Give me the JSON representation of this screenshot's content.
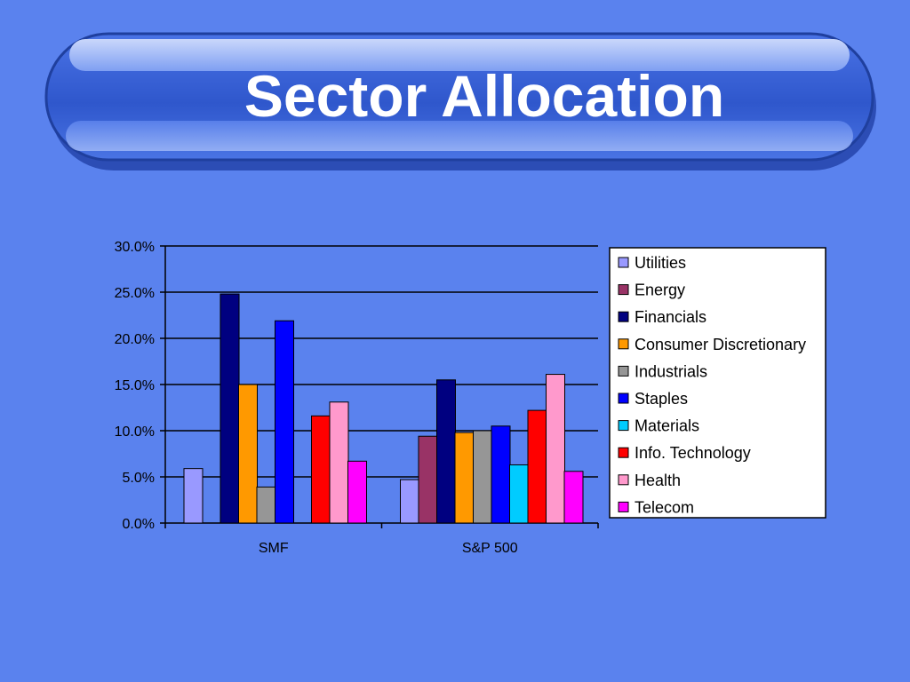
{
  "slide": {
    "title": "Sector Allocation",
    "background_color": "#5a82ee",
    "banner_color": "#3f66d8"
  },
  "chart_data": {
    "type": "bar",
    "title": "",
    "xlabel": "",
    "ylabel": "",
    "categories": [
      "SMF",
      "S&P 500"
    ],
    "ylim": [
      0,
      0.3
    ],
    "yticks": [
      "0.0%",
      "5.0%",
      "10.0%",
      "15.0%",
      "20.0%",
      "25.0%",
      "30.0%"
    ],
    "y_tick_values": [
      0,
      0.05,
      0.1,
      0.15,
      0.2,
      0.25,
      0.3
    ],
    "grid": true,
    "legend_placement": "right",
    "series": [
      {
        "name": "Utilities",
        "color": "#9999ff",
        "values": [
          0.059,
          0.047
        ]
      },
      {
        "name": "Energy",
        "color": "#993366",
        "values": [
          0.0,
          0.094
        ]
      },
      {
        "name": "Financials",
        "color": "#000080",
        "values": [
          0.248,
          0.155
        ]
      },
      {
        "name": "Consumer Discretionary",
        "color": "#ff9900",
        "values": [
          0.15,
          0.098
        ]
      },
      {
        "name": "Industrials",
        "color": "#969696",
        "values": [
          0.039,
          0.1
        ]
      },
      {
        "name": "Staples",
        "color": "#0000ff",
        "values": [
          0.219,
          0.105
        ]
      },
      {
        "name": "Materials",
        "color": "#00ccff",
        "values": [
          0.0,
          0.063
        ]
      },
      {
        "name": "Info. Technology",
        "color": "#ff0000",
        "values": [
          0.116,
          0.122
        ]
      },
      {
        "name": "Health",
        "color": "#ff99cc",
        "values": [
          0.131,
          0.161
        ]
      },
      {
        "name": "Telecom",
        "color": "#ff00ff",
        "values": [
          0.067,
          0.056
        ]
      }
    ]
  }
}
